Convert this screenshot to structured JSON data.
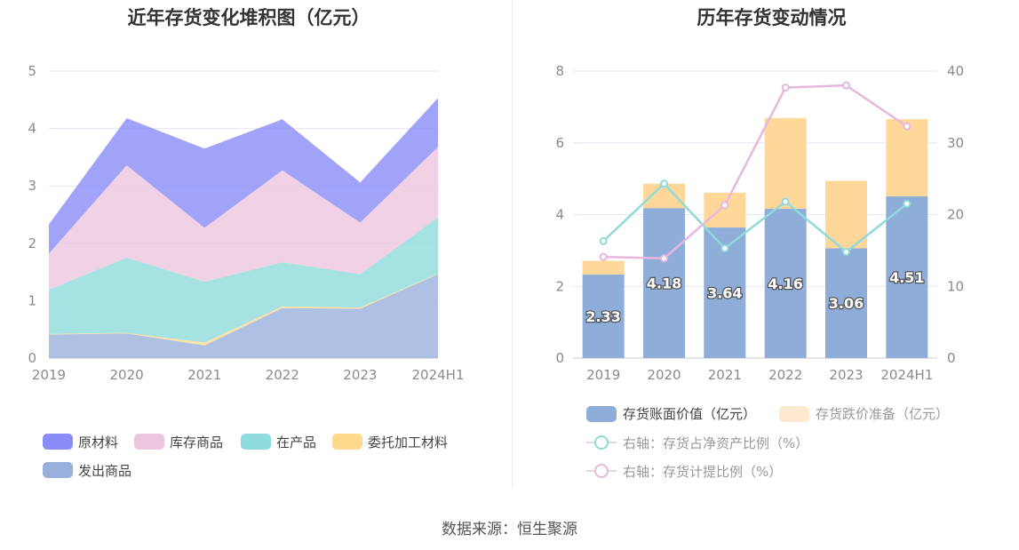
{
  "left_chart": {
    "title": "近年存货变化堆积图（亿元）"
  },
  "right_chart": {
    "title": "历年存货变动情况"
  },
  "source": "数据来源：恒生聚源",
  "chart_data": [
    {
      "type": "area",
      "stacked": true,
      "title": "近年存货变化堆积图（亿元）",
      "categories": [
        "2019",
        "2020",
        "2021",
        "2022",
        "2023",
        "2024H1"
      ],
      "ylim": [
        0,
        5
      ],
      "yticks": [
        0,
        1,
        2,
        3,
        4,
        5
      ],
      "grid": true,
      "legend_position": "bottom",
      "series": [
        {
          "name": "发出商品",
          "color": "#9ab0dc",
          "values": [
            0.41,
            0.43,
            0.22,
            0.87,
            0.86,
            1.46
          ]
        },
        {
          "name": "委托加工材料",
          "color": "#ffd98e",
          "values": [
            0.01,
            0.01,
            0.05,
            0.03,
            0.02,
            0.01
          ]
        },
        {
          "name": "在产品",
          "color": "#8fdcdc",
          "values": [
            0.77,
            1.31,
            1.06,
            0.77,
            0.58,
            0.98
          ]
        },
        {
          "name": "库存商品",
          "color": "#ecc5df",
          "values": [
            0.63,
            1.61,
            0.94,
            1.6,
            0.9,
            1.23
          ]
        },
        {
          "name": "原材料",
          "color": "#8a8cf8",
          "values": [
            0.51,
            0.82,
            1.38,
            0.89,
            0.7,
            0.85
          ]
        }
      ],
      "legend_order": [
        "原材料",
        "库存商品",
        "在产品",
        "委托加工材料",
        "发出商品"
      ]
    },
    {
      "type": "bar",
      "stacked": true,
      "title": "历年存货变动情况",
      "categories": [
        "2019",
        "2020",
        "2021",
        "2022",
        "2023",
        "2024H1"
      ],
      "ylim": [
        0,
        8
      ],
      "yticks": [
        0,
        2,
        4,
        6,
        8
      ],
      "y2lim": [
        0,
        40
      ],
      "y2ticks": [
        0,
        10,
        20,
        30,
        40
      ],
      "grid": true,
      "legend_position": "bottom",
      "series": [
        {
          "name": "存货账面价值（亿元）",
          "color": "#8eadd9",
          "values": [
            2.33,
            4.18,
            3.64,
            4.16,
            3.06,
            4.51
          ],
          "labels": [
            "2.33",
            "4.18",
            "3.64",
            "4.16",
            "3.06",
            "4.51"
          ]
        },
        {
          "name": "存货跌价准备（亿元）",
          "color": "#ffd899",
          "values": [
            0.38,
            0.68,
            0.97,
            2.53,
            1.88,
            2.15
          ]
        }
      ],
      "line_series": [
        {
          "name": "右轴：存货占净资产比例（%）",
          "color": "#8fdada",
          "axis": "right",
          "values": [
            16.3,
            24.3,
            15.3,
            21.8,
            14.8,
            21.5
          ]
        },
        {
          "name": "右轴：存货计提比例（%）",
          "color": "#e7b7dc",
          "axis": "right",
          "values": [
            14.1,
            13.9,
            21.3,
            37.7,
            38.0,
            32.3
          ]
        }
      ]
    }
  ]
}
